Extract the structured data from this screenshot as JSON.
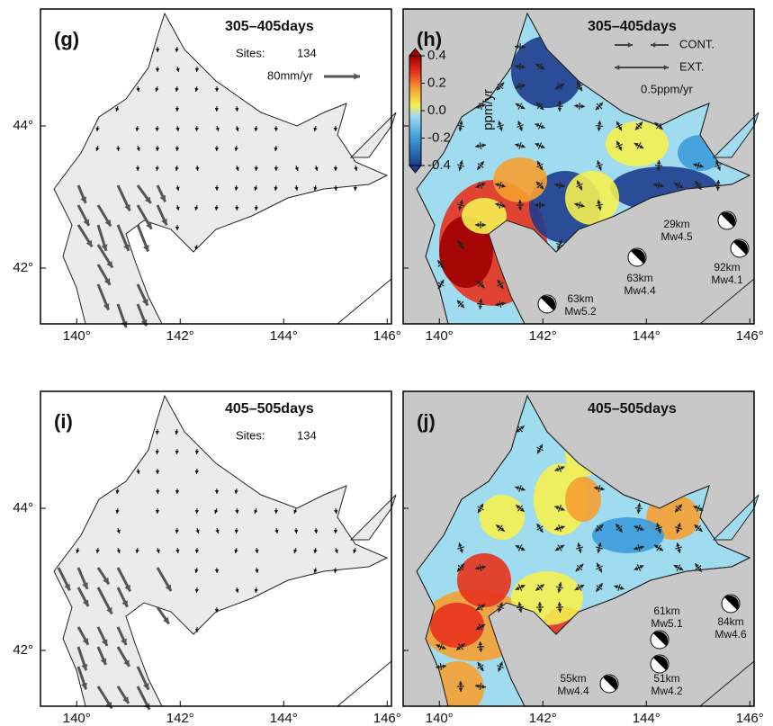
{
  "panels": [
    {
      "label": "(g)",
      "period": "305–405days",
      "sites_label": "Sites:",
      "sites": 134,
      "scale": "80mm/yr"
    },
    {
      "label": "(h)",
      "period": "305–405days",
      "legend": {
        "cont": "CONT.",
        "ext": "EXT.",
        "scale": "0.5ppm/yr"
      },
      "events": [
        {
          "depth": "29km",
          "mag": "Mw4.5"
        },
        {
          "depth": "92km",
          "mag": "Mw4.1"
        },
        {
          "depth": "63km",
          "mag": "Mw4.4"
        },
        {
          "depth": "63km",
          "mag": "Mw5.2"
        }
      ]
    },
    {
      "label": "(i)",
      "period": "405–505days",
      "sites_label": "Sites:",
      "sites": 134
    },
    {
      "label": "(j)",
      "period": "405–505days",
      "events": [
        {
          "depth": "61km",
          "mag": "Mw5.1"
        },
        {
          "depth": "84km",
          "mag": "Mw4.6"
        },
        {
          "depth": "51km",
          "mag": "Mw4.2"
        },
        {
          "depth": "55km",
          "mag": "Mw4.4"
        }
      ]
    }
  ],
  "colorbar": {
    "label": "ppm/yr",
    "lim": [
      -0.4,
      0.4
    ],
    "ticks": [
      0.4,
      0.2,
      {
        "value": 0,
        "label": "0.0"
      },
      {
        "value": -0.2,
        "label": "-0.2"
      },
      -0.4
    ]
  },
  "lon_ticks": [
    {
      "value": 140,
      "label": "140°"
    },
    {
      "value": 142,
      "label": "142°"
    },
    {
      "value": 144,
      "label": "144°"
    },
    {
      "value": 146,
      "label": "146°"
    }
  ],
  "lat_ticks": [
    {
      "value": 44,
      "label": "44°"
    },
    {
      "value": 42,
      "label": "42°"
    }
  ]
}
